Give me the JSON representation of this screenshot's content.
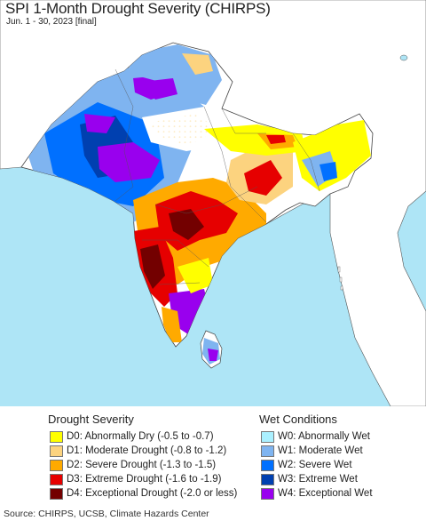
{
  "header": {
    "title": "SPI 1-Month Drought Severity (CHIRPS)",
    "subtitle": "Jun. 1 - 30, 2023 [final]"
  },
  "colors": {
    "ocean": "#aee5f6",
    "land_outside": "#ffffff",
    "no_data_land": "#ffffff",
    "border": "#555555"
  },
  "legend": {
    "drought": {
      "title": "Drought Severity",
      "items": [
        {
          "label": "D0: Abnormally Dry (-0.5 to -0.7)",
          "color": "#ffff00"
        },
        {
          "label": "D1: Moderate Drought (-0.8 to -1.2)",
          "color": "#fcd37f"
        },
        {
          "label": "D2: Severe Drought (-1.3 to -1.5)",
          "color": "#ffaa00"
        },
        {
          "label": "D3: Extreme Drought (-1.6 to -1.9)",
          "color": "#e60000"
        },
        {
          "label": "D4: Exceptional Drought (-2.0 or less)",
          "color": "#730000"
        }
      ]
    },
    "wet": {
      "title": "Wet Conditions",
      "items": [
        {
          "label": "W0: Abnormally Wet",
          "color": "#aaf0ff"
        },
        {
          "label": "W1: Moderate Wet",
          "color": "#7fb4f0"
        },
        {
          "label": "W2: Severe Wet",
          "color": "#0070ff"
        },
        {
          "label": "W3: Extreme Wet",
          "color": "#0040b0"
        },
        {
          "label": "W4: Exceptional Wet",
          "color": "#9900ee"
        }
      ]
    }
  },
  "footer": {
    "source": "Source: CHIRPS, UCSB, Climate Hazards Center"
  }
}
